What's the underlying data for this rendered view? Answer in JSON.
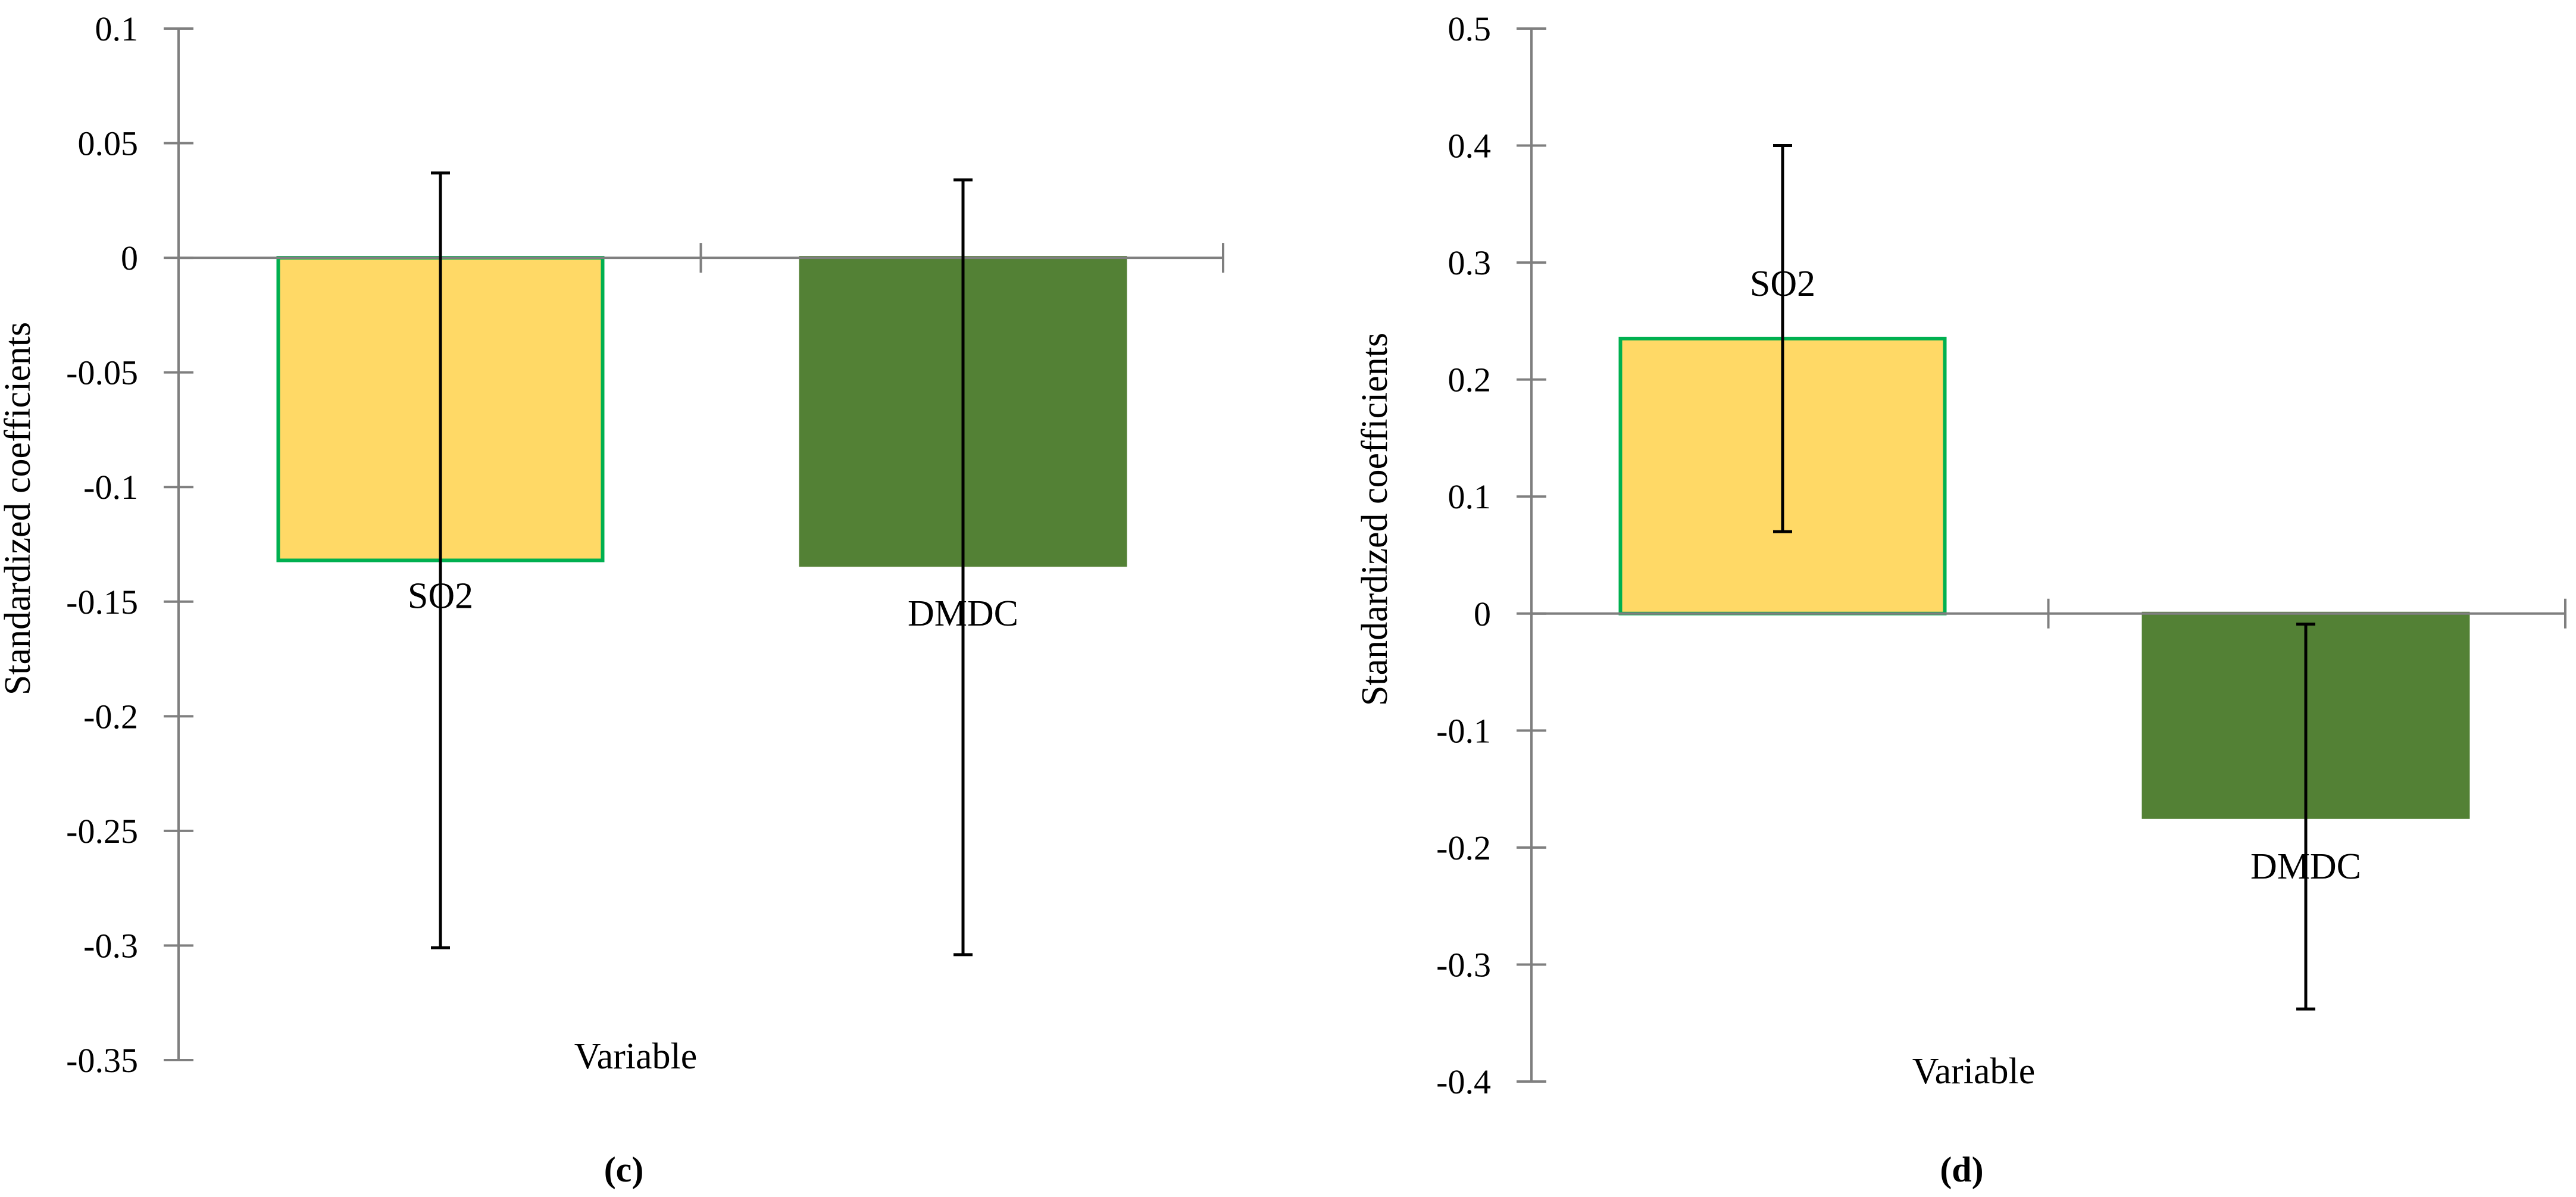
{
  "chart_data": [
    {
      "type": "bar",
      "panel_label": "(c)",
      "categories": [
        "SO2",
        "DMDC"
      ],
      "values": [
        -0.132,
        -0.134
      ],
      "error_low": [
        -0.301,
        -0.304
      ],
      "error_high": [
        0.037,
        0.034
      ],
      "xlabel": "Variable",
      "ylabel": "Standardized coefficients",
      "ylim": [
        -0.35,
        0.1
      ],
      "yticks": [
        0.1,
        0.05,
        0,
        -0.05,
        -0.1,
        -0.15,
        -0.2,
        -0.25,
        -0.3,
        -0.35
      ],
      "ytick_labels": [
        "0.1",
        "0.05",
        "0",
        "-0.05",
        "-0.1",
        "-0.15",
        "-0.2",
        "-0.25",
        "-0.3",
        "-0.35"
      ],
      "bar_colors": [
        "#FFD966",
        "#538135"
      ],
      "bar_edge_colors": [
        "#00B050",
        "#538135"
      ],
      "grid": false,
      "legend": false
    },
    {
      "type": "bar",
      "panel_label": "(d)",
      "categories": [
        "SO2",
        "DMDC"
      ],
      "values": [
        0.235,
        -0.174
      ],
      "error_low": [
        0.07,
        -0.338
      ],
      "error_high": [
        0.4,
        -0.009
      ],
      "xlabel": "Variable",
      "ylabel": "Standardized coefficients",
      "ylim": [
        -0.4,
        0.5
      ],
      "yticks": [
        0.5,
        0.4,
        0.3,
        0.2,
        0.1,
        0,
        -0.1,
        -0.2,
        -0.3,
        -0.4
      ],
      "ytick_labels": [
        "0.5",
        "0.4",
        "0.3",
        "0.2",
        "0.1",
        "0",
        "-0.1",
        "-0.2",
        "-0.3",
        "-0.4"
      ],
      "bar_colors": [
        "#FFD966",
        "#538135"
      ],
      "bar_edge_colors": [
        "#00B050",
        "#538135"
      ],
      "grid": false,
      "legend": false
    }
  ]
}
